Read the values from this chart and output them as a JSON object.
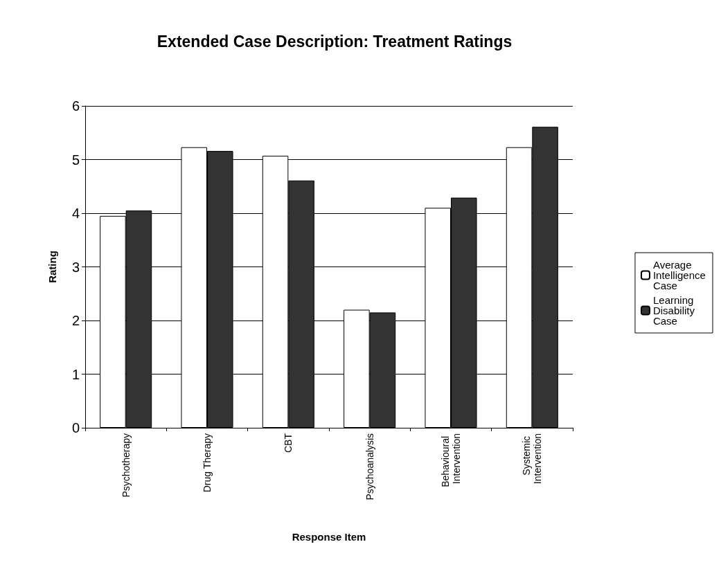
{
  "chart_data": {
    "type": "bar",
    "title": "Extended Case Description: Treatment Ratings",
    "xlabel": "Response Item",
    "ylabel": "Rating",
    "categories": [
      "Psychotherapy",
      "Drug Therapy",
      "CBT",
      "Psychoanalysis",
      "Behavioural Intervention",
      "Systemic Intervention"
    ],
    "series": [
      {
        "name": "Average Intelligence Case",
        "color": "#ffffff",
        "values": [
          3.95,
          5.23,
          5.07,
          2.2,
          4.1,
          5.23
        ]
      },
      {
        "name": "Learning Disability Case",
        "color": "#333333",
        "values": [
          4.05,
          5.16,
          4.61,
          2.15,
          4.29,
          5.61
        ]
      }
    ],
    "ylim": [
      0,
      6
    ],
    "yticks": [
      0,
      1,
      2,
      3,
      4,
      5,
      6
    ],
    "grid": "y",
    "legend": "right"
  }
}
